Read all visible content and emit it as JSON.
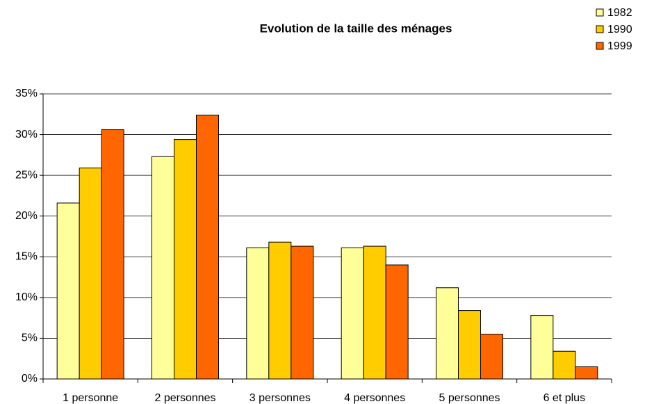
{
  "chart_data": {
    "type": "bar",
    "title": "Evolution de la taille des ménages",
    "categories": [
      "1 personne",
      "2 personnes",
      "3 personnes",
      "4 personnes",
      "5 personnes",
      "6 et plus"
    ],
    "series": [
      {
        "name": "1982",
        "color": "#ffff99",
        "values": [
          21.6,
          27.3,
          16.1,
          16.1,
          11.2,
          7.8
        ]
      },
      {
        "name": "1990",
        "color": "#ffcc00",
        "values": [
          25.9,
          29.4,
          16.8,
          16.3,
          8.4,
          3.4
        ]
      },
      {
        "name": "1999",
        "color": "#ff6600",
        "values": [
          30.6,
          32.4,
          16.3,
          14.0,
          5.5,
          1.5
        ]
      }
    ],
    "ylim": [
      0,
      35
    ],
    "yticks": [
      {
        "value": 0,
        "label": "0%"
      },
      {
        "value": 5,
        "label": "5%"
      },
      {
        "value": 10,
        "label": "10%"
      },
      {
        "value": 15,
        "label": "15%"
      },
      {
        "value": 20,
        "label": "20%"
      },
      {
        "value": 25,
        "label": "25%"
      },
      {
        "value": 30,
        "label": "30%"
      },
      {
        "value": 35,
        "label": "35%"
      }
    ],
    "grid": true,
    "legend": "top-right"
  }
}
